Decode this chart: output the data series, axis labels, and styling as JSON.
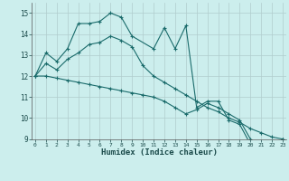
{
  "xlabel": "Humidex (Indice chaleur)",
  "bg_color": "#cceeed",
  "line_color": "#1a6b6b",
  "grid_color": "#b0cccc",
  "xlim": [
    -0.3,
    23.3
  ],
  "ylim": [
    9.0,
    15.5
  ],
  "curve1_x": [
    0,
    1,
    2,
    3,
    4,
    5,
    6,
    7,
    8,
    9,
    11,
    12,
    13,
    14,
    15,
    16,
    17,
    18,
    19,
    20,
    21,
    22,
    23
  ],
  "curve1_y": [
    12.0,
    13.1,
    12.7,
    13.3,
    14.5,
    14.5,
    14.6,
    15.0,
    14.8,
    13.9,
    13.3,
    14.3,
    13.3,
    14.4,
    10.5,
    10.8,
    10.8,
    9.9,
    9.7,
    8.75,
    8.7,
    8.7,
    9.0
  ],
  "curve2_x": [
    0,
    1,
    2,
    3,
    4,
    5,
    6,
    7,
    8,
    9,
    10,
    11,
    12,
    13,
    14,
    15,
    16,
    17,
    18,
    19,
    20,
    21,
    22,
    23
  ],
  "curve2_y": [
    12.0,
    12.6,
    12.3,
    12.8,
    13.1,
    13.5,
    13.6,
    13.9,
    13.7,
    13.4,
    12.5,
    12.0,
    11.7,
    11.4,
    11.1,
    10.8,
    10.5,
    10.3,
    10.0,
    9.8,
    9.5,
    9.3,
    9.1,
    9.0
  ],
  "curve3_x": [
    0,
    1,
    2,
    3,
    4,
    5,
    6,
    7,
    8,
    9,
    10,
    11,
    12,
    13,
    14,
    15,
    16,
    17,
    18,
    19,
    20,
    21,
    22,
    23
  ],
  "curve3_y": [
    12.0,
    12.0,
    11.9,
    11.8,
    11.7,
    11.6,
    11.5,
    11.4,
    11.3,
    11.2,
    11.1,
    11.0,
    10.8,
    10.5,
    10.2,
    10.4,
    10.7,
    10.5,
    10.2,
    9.9,
    9.0,
    8.7,
    8.7,
    9.0
  ]
}
